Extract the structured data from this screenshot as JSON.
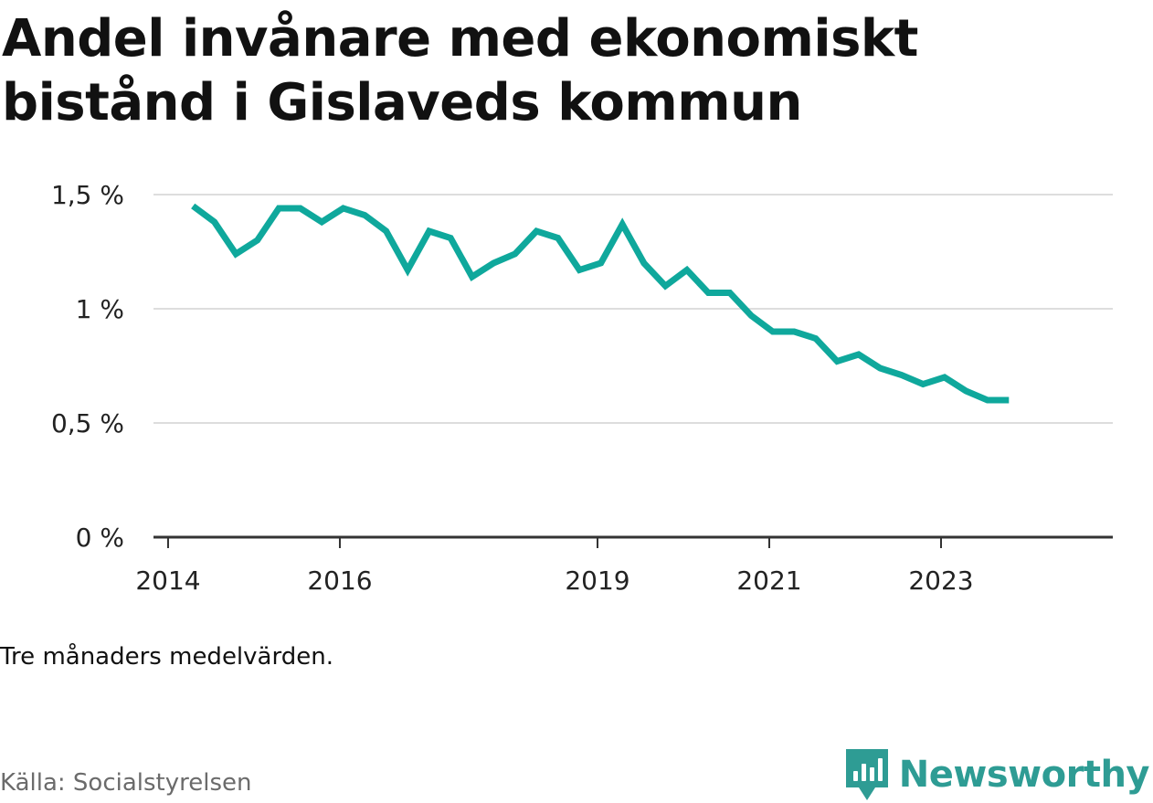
{
  "title": "Andel invånare med ekonomiskt bistånd i Gislaveds kommun",
  "note": "Tre månaders medelvärden.",
  "source": "Källa: Socialstyrelsen",
  "brand": {
    "name": "Newsworthy",
    "color": "#2e9c94",
    "icon": "newsworthy-logo-icon"
  },
  "chart_data": {
    "type": "line",
    "title": "Andel invånare med ekonomiskt bistånd i Gislaveds kommun",
    "xlabel": "",
    "ylabel": "",
    "line_color": "#0fa89c",
    "grid": true,
    "xlim": [
      2013.83,
      2025.0
    ],
    "ylim": [
      0,
      1.5
    ],
    "y_ticks": [
      {
        "value": 0,
        "label": "0 %"
      },
      {
        "value": 0.5,
        "label": "0,5 %"
      },
      {
        "value": 1.0,
        "label": "1 %"
      },
      {
        "value": 1.5,
        "label": "1,5 %"
      }
    ],
    "x_ticks": [
      {
        "value": 2014,
        "label": "2014"
      },
      {
        "value": 2016,
        "label": "2016"
      },
      {
        "value": 2019,
        "label": "2019"
      },
      {
        "value": 2021,
        "label": "2021"
      },
      {
        "value": 2023,
        "label": "2023"
      }
    ],
    "series": [
      {
        "name": "Andel invånare med ekonomiskt bistånd",
        "x": [
          2014.29,
          2014.54,
          2014.79,
          2015.04,
          2015.29,
          2015.54,
          2015.79,
          2016.04,
          2016.29,
          2016.54,
          2016.79,
          2017.04,
          2017.29,
          2017.54,
          2017.79,
          2018.04,
          2018.29,
          2018.54,
          2018.79,
          2019.04,
          2019.29,
          2019.54,
          2019.79,
          2020.04,
          2020.29,
          2020.54,
          2020.79,
          2021.04,
          2021.29,
          2021.54,
          2021.79,
          2022.04,
          2022.29,
          2022.54,
          2022.79,
          2023.04,
          2023.29,
          2023.54,
          2023.79
        ],
        "values": [
          1.45,
          1.38,
          1.24,
          1.3,
          1.44,
          1.44,
          1.38,
          1.44,
          1.41,
          1.34,
          1.17,
          1.34,
          1.31,
          1.14,
          1.2,
          1.24,
          1.34,
          1.31,
          1.17,
          1.2,
          1.37,
          1.2,
          1.1,
          1.17,
          1.07,
          1.07,
          0.97,
          0.9,
          0.9,
          0.87,
          0.77,
          0.8,
          0.74,
          0.71,
          0.67,
          0.7,
          0.64,
          0.6,
          0.6
        ]
      }
    ]
  }
}
